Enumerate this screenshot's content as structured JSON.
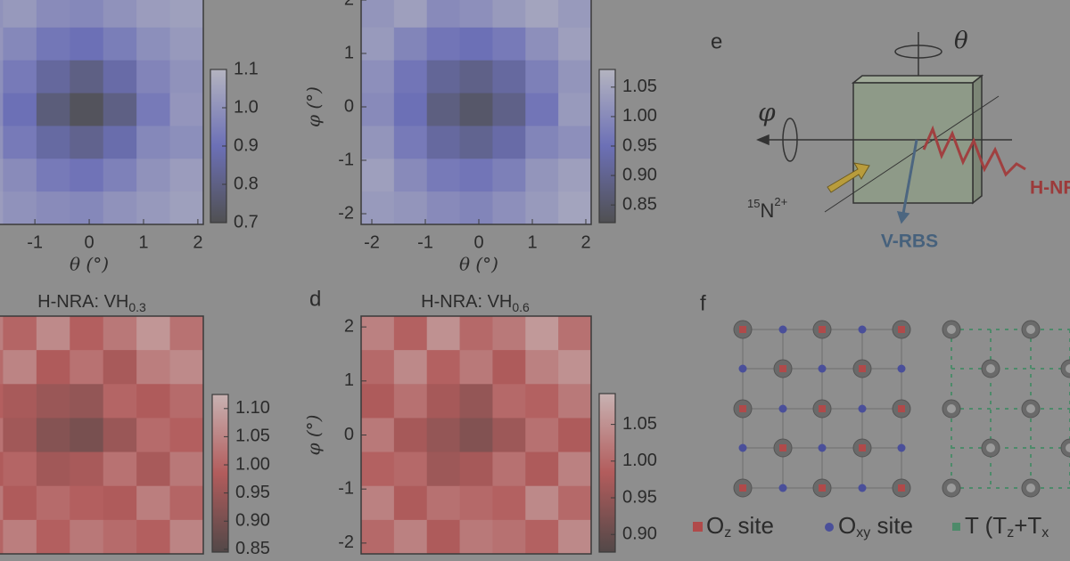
{
  "panels": [
    {
      "xlabel": "θ (°)",
      "xlim": [
        -2.2,
        2.1
      ],
      "ylim": [
        -2.2,
        2.1
      ],
      "xticks": [
        -1,
        0,
        1,
        2
      ],
      "yticks": [],
      "clim": [
        0.7,
        1.1
      ],
      "cticks": [
        0.7,
        0.8,
        0.9,
        {
          "value": 1,
          "label": "1.0"
        },
        1.1
      ],
      "colormap": [
        "#505052",
        "#6c70b6",
        "#b4b4c0"
      ],
      "z": [
        [
          1.0,
          1.02,
          0.98,
          0.97,
          1.0,
          1.03,
          1.04
        ],
        [
          1.01,
          0.97,
          0.92,
          0.9,
          0.94,
          0.99,
          1.02
        ],
        [
          0.99,
          0.93,
          0.85,
          0.8,
          0.87,
          0.96,
          1.0
        ],
        [
          0.98,
          0.9,
          0.78,
          0.72,
          0.8,
          0.93,
          1.01
        ],
        [
          1.0,
          0.93,
          0.86,
          0.82,
          0.88,
          0.97,
          0.99
        ],
        [
          1.02,
          0.98,
          0.93,
          0.91,
          0.95,
          1.0,
          1.03
        ],
        [
          1.03,
          1.0,
          0.98,
          0.97,
          1.0,
          1.02,
          1.04
        ]
      ]
    },
    {
      "xlabel": "θ (°)",
      "ylabel": "φ (°)",
      "xlim": [
        -2.2,
        2.1
      ],
      "ylim": [
        -2.2,
        2.1
      ],
      "xticks": [
        -2,
        -1,
        0,
        1,
        2
      ],
      "yticks": [
        -2,
        -1,
        0,
        1,
        2
      ],
      "clim": [
        0.82,
        1.08
      ],
      "cticks": [
        0.85,
        {
          "value": 0.9,
          "label": "0.90"
        },
        0.95,
        {
          "value": 1,
          "label": "1.00"
        },
        1.05
      ],
      "colormap": [
        "#505052",
        "#6c70b6",
        "#b4b4c0"
      ],
      "z": [
        [
          1.02,
          1.04,
          1.0,
          1.01,
          1.03,
          1.05,
          1.03
        ],
        [
          1.03,
          0.99,
          0.96,
          0.95,
          0.97,
          1.01,
          1.04
        ],
        [
          1.01,
          0.96,
          0.91,
          0.89,
          0.92,
          0.98,
          1.02
        ],
        [
          1.0,
          0.95,
          0.88,
          0.85,
          0.89,
          0.96,
          1.03
        ],
        [
          1.02,
          0.97,
          0.92,
          0.9,
          0.93,
          0.99,
          1.01
        ],
        [
          1.04,
          1.0,
          0.97,
          0.96,
          0.98,
          1.02,
          1.04
        ],
        [
          1.03,
          1.02,
          1.0,
          0.99,
          1.01,
          1.03,
          1.05
        ]
      ]
    },
    {
      "title": "H-NRA: VH",
      "title_sub": "0.3",
      "xlim": [
        -2.2,
        2.1
      ],
      "ylim": [
        -2.2,
        2.2
      ],
      "xticks": [],
      "yticks": [],
      "clim": [
        0.845,
        1.125
      ],
      "cticks": [
        0.85,
        {
          "value": 0.9,
          "label": "0.90"
        },
        0.95,
        {
          "value": 1,
          "label": "1.00"
        },
        1.05,
        {
          "value": 1.1,
          "label": "1.10"
        }
      ],
      "colormap": [
        "#524848",
        "#b25c5c",
        "#c8b2b2"
      ],
      "z": [
        [
          1.04,
          1.0,
          1.06,
          0.99,
          1.03,
          1.08,
          1.02
        ],
        [
          1.01,
          1.05,
          0.98,
          1.02,
          0.97,
          1.04,
          1.06
        ],
        [
          0.99,
          0.97,
          0.95,
          0.94,
          1.0,
          0.98,
          1.01
        ],
        [
          1.02,
          0.96,
          0.92,
          0.9,
          0.95,
          1.01,
          0.99
        ],
        [
          0.98,
          1.0,
          0.96,
          0.97,
          1.02,
          0.97,
          1.03
        ],
        [
          1.03,
          0.98,
          1.01,
          0.99,
          0.98,
          1.04,
          1.0
        ],
        [
          1.0,
          1.04,
          0.99,
          1.03,
          1.01,
          0.99,
          1.05
        ]
      ]
    },
    {
      "label": "d",
      "title": "H-NRA: VH",
      "title_sub": "0.6",
      "ylabel": "φ (°)",
      "xlim": [
        -2.2,
        2.1
      ],
      "ylim": [
        -2.2,
        2.2
      ],
      "xticks": [],
      "yticks": [
        -2,
        -1,
        0,
        1,
        2
      ],
      "clim": [
        0.876,
        1.092
      ],
      "cticks": [
        {
          "value": 0.9,
          "label": "0.90"
        },
        0.95,
        {
          "value": 1,
          "label": "1.00"
        },
        1.05
      ],
      "colormap": [
        "#524848",
        "#b25c5c",
        "#c8b2b2"
      ],
      "z": [
        [
          1.03,
          0.99,
          1.05,
          1.0,
          1.02,
          1.06,
          1.01
        ],
        [
          1.0,
          1.04,
          0.99,
          1.02,
          0.98,
          1.03,
          1.05
        ],
        [
          0.98,
          1.01,
          0.97,
          0.95,
          1.0,
          0.99,
          1.02
        ],
        [
          1.02,
          0.97,
          0.95,
          0.93,
          0.96,
          1.01,
          0.98
        ],
        [
          0.99,
          1.0,
          0.96,
          0.97,
          1.01,
          0.98,
          1.03
        ],
        [
          1.03,
          0.98,
          1.01,
          1.0,
          0.99,
          1.04,
          1.0
        ],
        [
          1.0,
          1.03,
          0.98,
          1.02,
          1.01,
          0.99,
          1.04
        ]
      ]
    }
  ],
  "diagram": {
    "label": "e",
    "theta": "θ",
    "phi": "φ",
    "beam_sup": "15",
    "beam": "N",
    "beam_charge": "2+",
    "rbs": "V-RBS",
    "nra": "H-NRA"
  },
  "lattice": {
    "label": "f",
    "legend": [
      {
        "text": "O",
        "sub": "z",
        "after": " site"
      },
      {
        "text": "O",
        "sub": "xy",
        "after": " site"
      },
      {
        "text": "T (T",
        "sub": "z",
        "after": "+T",
        "sub2": "x"
      }
    ]
  }
}
